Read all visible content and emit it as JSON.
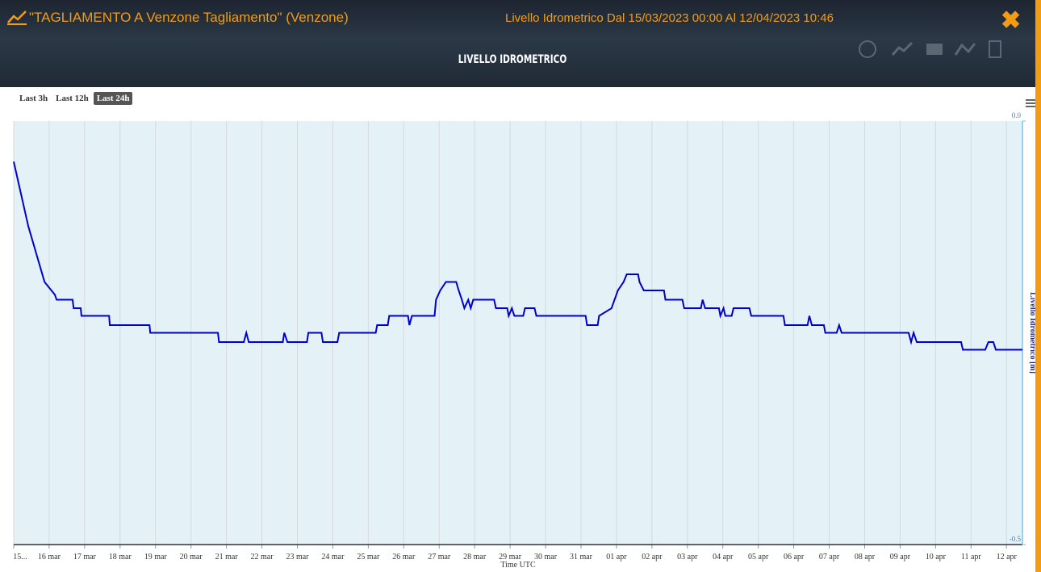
{
  "header": {
    "station": "\"TAGLIAMENTO A Venzone Tagliamento\" (Venzone)",
    "period": "Livello Idrometrico Dal 15/03/2023 00:00 Al 12/04/2023 10:46"
  },
  "range_buttons": [
    "Last 3h",
    "Last 12h",
    "Last 24h"
  ],
  "chart_data": {
    "type": "line",
    "title": "LIVELLO IDROMETRICO",
    "xlabel": "Time UTC",
    "ylabel": "Livello Idrometrico [m]",
    "color": "#0000cc",
    "grid": true,
    "xlim": [
      0,
      28.45
    ],
    "xticks": [
      {
        "value": 0,
        "label": "15..."
      },
      {
        "value": 1,
        "label": "16 mar"
      },
      {
        "value": 2,
        "label": "17 mar"
      },
      {
        "value": 3,
        "label": "18 mar"
      },
      {
        "value": 4,
        "label": "19 mar"
      },
      {
        "value": 5,
        "label": "20 mar"
      },
      {
        "value": 6,
        "label": "21 mar"
      },
      {
        "value": 7,
        "label": "22 mar"
      },
      {
        "value": 8,
        "label": "23 mar"
      },
      {
        "value": 9,
        "label": "24 mar"
      },
      {
        "value": 10,
        "label": "25 mar"
      },
      {
        "value": 11,
        "label": "26 mar"
      },
      {
        "value": 12,
        "label": "27 mar"
      },
      {
        "value": 13,
        "label": "28 mar"
      },
      {
        "value": 14,
        "label": "29 mar"
      },
      {
        "value": 15,
        "label": "30 mar"
      },
      {
        "value": 16,
        "label": "31 mar"
      },
      {
        "value": 17,
        "label": "01 apr"
      },
      {
        "value": 18,
        "label": "02 apr"
      },
      {
        "value": 19,
        "label": "03 apr"
      },
      {
        "value": 20,
        "label": "04 apr"
      },
      {
        "value": 21,
        "label": "05 apr"
      },
      {
        "value": 22,
        "label": "06 apr"
      },
      {
        "value": 23,
        "label": "07 apr"
      },
      {
        "value": 24,
        "label": "08 apr"
      },
      {
        "value": 25,
        "label": "09 apr"
      },
      {
        "value": 26,
        "label": "10 apr"
      },
      {
        "value": 27,
        "label": "11 apr"
      },
      {
        "value": 28,
        "label": "12 apr"
      }
    ],
    "ylim": [
      -0.5,
      0
    ],
    "yticks": [
      {
        "value": 0,
        "label": "0.0"
      },
      -0.5
    ],
    "x": [
      0,
      0.41,
      0.87,
      1.16,
      1.21,
      1.66,
      1.69,
      1.89,
      1.91,
      2.69,
      2.71,
      3.83,
      3.85,
      5.76,
      5.79,
      6.49,
      6.56,
      6.63,
      7.59,
      7.63,
      7.72,
      8.27,
      8.31,
      8.68,
      8.72,
      9.13,
      9.18,
      10.21,
      10.25,
      10.55,
      10.59,
      11.12,
      11.16,
      11.23,
      11.87,
      11.91,
      12.03,
      12.19,
      12.48,
      12.55,
      12.64,
      12.71,
      12.82,
      12.89,
      12.96,
      13.55,
      13.6,
      13.92,
      13.96,
      14.05,
      14.12,
      14.37,
      14.42,
      14.69,
      14.74,
      16.13,
      16.17,
      16.47,
      16.51,
      16.86,
      17.04,
      17.2,
      17.29,
      17.61,
      17.65,
      17.77,
      18.34,
      18.38,
      18.86,
      18.91,
      19.38,
      19.43,
      19.5,
      19.89,
      19.93,
      20.02,
      20.07,
      20.25,
      20.3,
      20.75,
      20.8,
      21.71,
      21.75,
      22.39,
      22.44,
      22.51,
      22.85,
      22.89,
      23.21,
      23.28,
      23.35,
      25.24,
      25.31,
      25.38,
      25.47,
      26.72,
      26.77,
      27.4,
      27.49,
      27.63,
      27.7,
      28.45
    ],
    "values": [
      -0.048,
      -0.124,
      -0.19,
      -0.205,
      -0.211,
      -0.211,
      -0.221,
      -0.221,
      -0.23,
      -0.23,
      -0.241,
      -0.241,
      -0.25,
      -0.25,
      -0.261,
      -0.261,
      -0.25,
      -0.261,
      -0.261,
      -0.25,
      -0.261,
      -0.261,
      -0.25,
      -0.25,
      -0.261,
      -0.261,
      -0.25,
      -0.25,
      -0.241,
      -0.241,
      -0.23,
      -0.23,
      -0.241,
      -0.23,
      -0.23,
      -0.211,
      -0.2,
      -0.19,
      -0.19,
      -0.2,
      -0.211,
      -0.221,
      -0.211,
      -0.221,
      -0.211,
      -0.211,
      -0.221,
      -0.221,
      -0.23,
      -0.221,
      -0.23,
      -0.23,
      -0.221,
      -0.221,
      -0.23,
      -0.23,
      -0.241,
      -0.241,
      -0.23,
      -0.221,
      -0.2,
      -0.19,
      -0.181,
      -0.181,
      -0.19,
      -0.2,
      -0.2,
      -0.211,
      -0.211,
      -0.221,
      -0.221,
      -0.211,
      -0.221,
      -0.221,
      -0.23,
      -0.221,
      -0.23,
      -0.23,
      -0.221,
      -0.221,
      -0.23,
      -0.23,
      -0.241,
      -0.241,
      -0.23,
      -0.241,
      -0.241,
      -0.25,
      -0.25,
      -0.241,
      -0.25,
      -0.25,
      -0.261,
      -0.25,
      -0.261,
      -0.261,
      -0.27,
      -0.27,
      -0.261,
      -0.261,
      -0.27,
      -0.27
    ]
  }
}
